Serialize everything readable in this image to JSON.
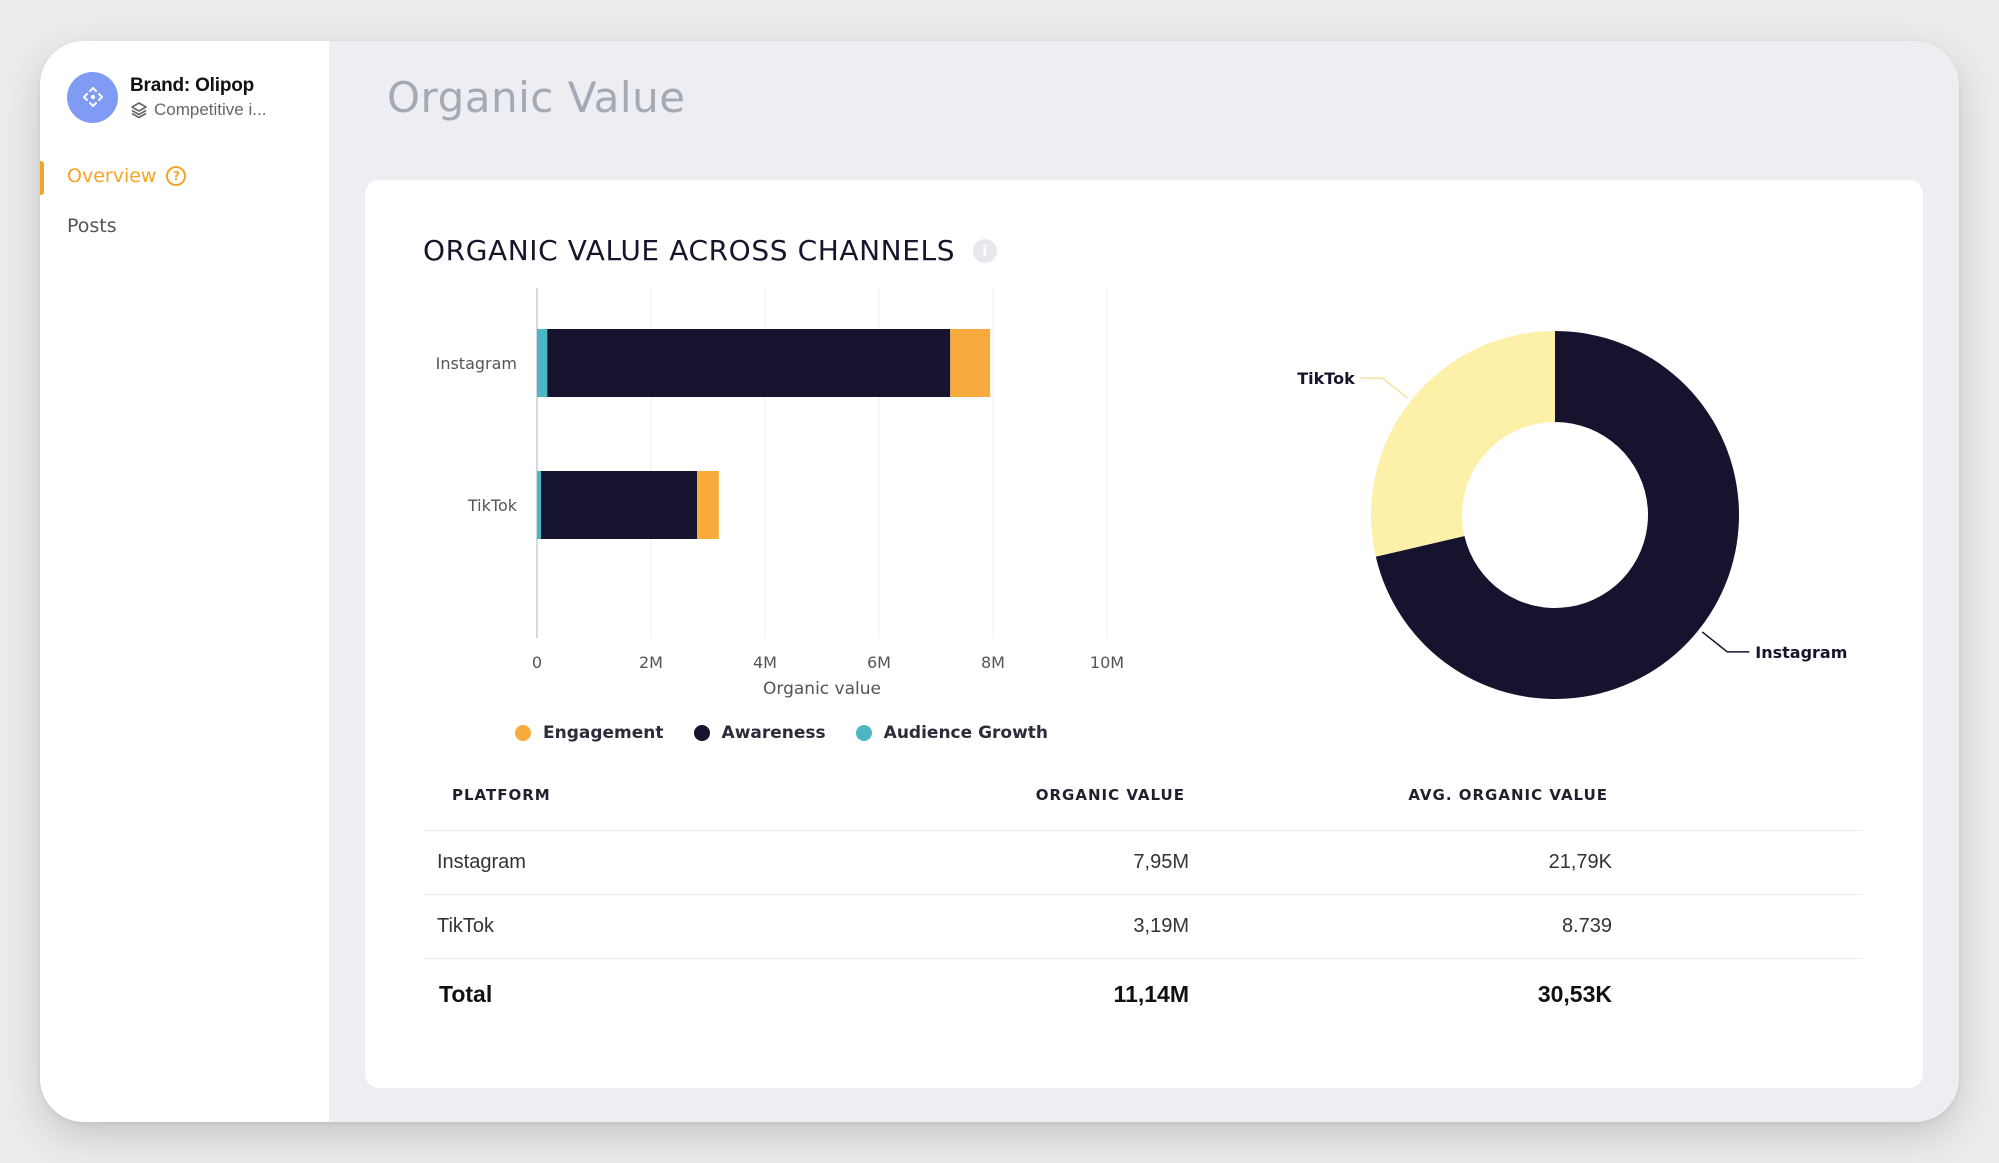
{
  "sidebar": {
    "brand_name": "Brand: Olipop",
    "brand_sub": "Competitive i...",
    "items": [
      {
        "label": "Overview",
        "active": true
      },
      {
        "label": "Posts",
        "active": false
      }
    ]
  },
  "page_title": "Organic Value",
  "card": {
    "title": "ORGANIC VALUE ACROSS CHANNELS"
  },
  "chart_data": [
    {
      "type": "bar",
      "orientation": "horizontal",
      "stacked": true,
      "categories": [
        "Instagram",
        "TikTok"
      ],
      "series": [
        {
          "name": "Audience Growth",
          "color": "#4db6c4",
          "values": [
            0.18,
            0.07
          ]
        },
        {
          "name": "Awareness",
          "color": "#15132e",
          "values": [
            7.07,
            2.74
          ]
        },
        {
          "name": "Engagement",
          "color": "#f8ab3c",
          "values": [
            0.7,
            0.38
          ]
        }
      ],
      "xlabel": "Organic value",
      "xlim": [
        0,
        10
      ],
      "xticks": [
        "0",
        "2M",
        "4M",
        "6M",
        "8M",
        "10M"
      ],
      "legend_order": [
        "Engagement",
        "Awareness",
        "Audience Growth"
      ],
      "legend_position": "bottom",
      "grid": true
    },
    {
      "type": "pie",
      "donut": true,
      "labels": [
        "Instagram",
        "TikTok"
      ],
      "values": [
        7.95,
        3.19
      ],
      "colors": [
        "#15132e",
        "#fdf0a8"
      ]
    }
  ],
  "table": {
    "headers": [
      "PLATFORM",
      "ORGANIC VALUE",
      "AVG. ORGANIC VALUE"
    ],
    "rows": [
      {
        "platform": "Instagram",
        "organic": "7,95M",
        "avg": "21,79K"
      },
      {
        "platform": "TikTok",
        "organic": "3,19M",
        "avg": "8.739"
      }
    ],
    "total": {
      "platform": "Total",
      "organic": "11,14M",
      "avg": "30,53K"
    }
  }
}
